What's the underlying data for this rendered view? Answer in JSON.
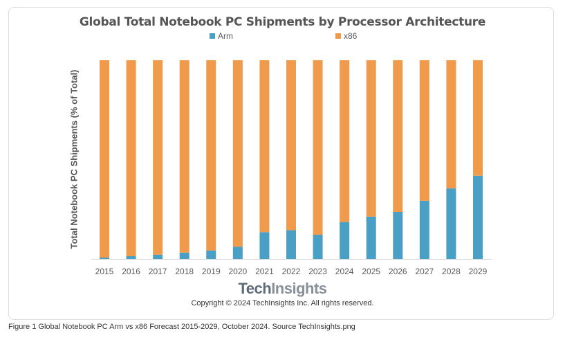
{
  "chart_data": {
    "type": "bar",
    "stacked": true,
    "title": "Global Total Notebook PC Shipments by Processor Architecture",
    "ylabel": "Total Notebook PC Shipments (% of Total)",
    "xlabel": "",
    "ylim": [
      0,
      100
    ],
    "grid": false,
    "legend": "top",
    "categories": [
      "2015",
      "2016",
      "2017",
      "2018",
      "2019",
      "2020",
      "2021",
      "2022",
      "2023",
      "2024",
      "2025",
      "2026",
      "2027",
      "2028",
      "2029"
    ],
    "series": [
      {
        "name": "Arm",
        "color": "#4a9fc4",
        "values": [
          0.7,
          1.4,
          2.2,
          3.2,
          4.3,
          6.2,
          13.5,
          14.5,
          12.2,
          18.6,
          21.3,
          23.7,
          29.3,
          35.5,
          41.9
        ]
      },
      {
        "name": "x86",
        "color": "#f09a4b",
        "values": [
          99.3,
          98.6,
          97.8,
          96.8,
          95.7,
          93.8,
          86.5,
          85.5,
          87.8,
          81.4,
          78.7,
          76.3,
          70.7,
          64.5,
          58.1
        ]
      }
    ]
  },
  "logo": {
    "part1": "Tech",
    "part2": "Insights"
  },
  "copyright": "Copyright © 2024 TechInsights Inc.  All rights reserved.",
  "caption": "Figure 1 Global Notebook PC Arm vs x86 Forecast 2015-2029, October 2024. Source TechInsights.png"
}
